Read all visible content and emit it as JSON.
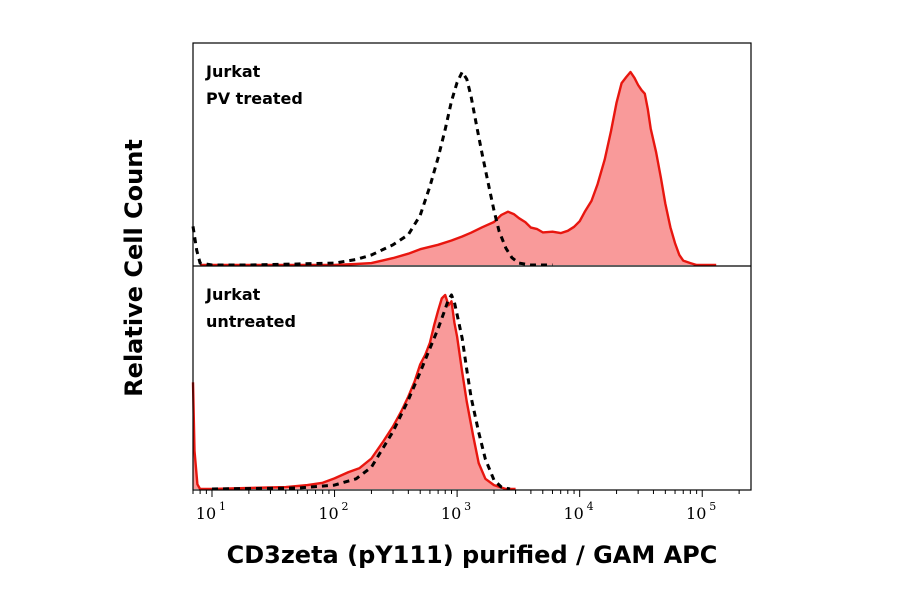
{
  "chart_data": {
    "type": "area",
    "xlabel": "CD3zeta (pY111) purified / GAM APC",
    "ylabel": "Relative Cell Count",
    "xscale": "log",
    "xlim": [
      7,
      250000
    ],
    "xticks": [
      {
        "value": 10,
        "base": "10",
        "exp": "1"
      },
      {
        "value": 100,
        "base": "10",
        "exp": "2"
      },
      {
        "value": 1000,
        "base": "10",
        "exp": "3"
      },
      {
        "value": 10000,
        "base": "10",
        "exp": "4"
      },
      {
        "value": 100000,
        "base": "10",
        "exp": "5"
      }
    ],
    "grid": false,
    "legend": "none",
    "colors": {
      "sample": "#e8160f",
      "sample_fill": "#f99a9a",
      "control": "#000000"
    },
    "panels": [
      {
        "id": "pv-treated",
        "label_lines": [
          "Jurkat",
          "PV treated"
        ],
        "series": [
          {
            "role": "sample",
            "style": "filled-red",
            "x": [
              8,
              30,
              60,
              100,
              150,
              200,
              300,
              400,
              500,
              700,
              900,
              1100,
              1300,
              1600,
              2000,
              2300,
              2600,
              2900,
              3200,
              3600,
              4000,
              4500,
              5000,
              6000,
              7000,
              8000,
              9000,
              10000,
              11000,
              12500,
              14000,
              16000,
              18000,
              20000,
              22000,
              24000,
              26000,
              28000,
              30000,
              32000,
              34000,
              36000,
              38000,
              42000,
              46000,
              50000,
              55000,
              60000,
              65000,
              70000,
              80000,
              90000,
              100000,
              130000
            ],
            "y": [
              0,
              0,
              0,
              0,
              0.005,
              0.01,
              0.04,
              0.06,
              0.08,
              0.1,
              0.12,
              0.14,
              0.16,
              0.19,
              0.22,
              0.26,
              0.28,
              0.27,
              0.25,
              0.23,
              0.2,
              0.19,
              0.17,
              0.17,
              0.16,
              0.17,
              0.19,
              0.22,
              0.27,
              0.33,
              0.42,
              0.55,
              0.7,
              0.85,
              0.95,
              0.98,
              1.0,
              0.97,
              0.93,
              0.9,
              0.88,
              0.8,
              0.7,
              0.58,
              0.45,
              0.32,
              0.2,
              0.12,
              0.06,
              0.03,
              0.01,
              0,
              0,
              0
            ]
          },
          {
            "role": "control",
            "style": "dashed-black",
            "x": [
              7,
              7.5,
              8,
              10,
              20,
              50,
              100,
              150,
              200,
              300,
              400,
              500,
              600,
              700,
              800,
              900,
              1000,
              1100,
              1200,
              1300,
              1450,
              1600,
              1800,
              2000,
              2200,
              2500,
              2800,
              3200,
              4000,
              6000
            ],
            "y": [
              0.2,
              0.08,
              0.01,
              0,
              0,
              0.005,
              0.01,
              0.03,
              0.05,
              0.1,
              0.15,
              0.25,
              0.4,
              0.55,
              0.7,
              0.85,
              0.95,
              1.0,
              0.97,
              0.88,
              0.72,
              0.58,
              0.42,
              0.28,
              0.17,
              0.08,
              0.03,
              0.01,
              0,
              0
            ]
          }
        ]
      },
      {
        "id": "untreated",
        "label_lines": [
          "Jurkat",
          "untreated"
        ],
        "series": [
          {
            "role": "sample",
            "style": "filled-red",
            "x": [
              7,
              7.2,
              7.6,
              8,
              10,
              20,
              40,
              60,
              80,
              100,
              130,
              160,
              200,
              250,
              300,
              350,
              400,
              450,
              500,
              550,
              600,
              650,
              700,
              750,
              800,
              850,
              900,
              950,
              1000,
              1100,
              1200,
              1350,
              1500,
              1700,
              2000,
              2500,
              3000
            ],
            "y": [
              0.55,
              0.2,
              0.03,
              0,
              0,
              0.005,
              0.01,
              0.02,
              0.03,
              0.05,
              0.08,
              0.1,
              0.15,
              0.24,
              0.32,
              0.4,
              0.48,
              0.56,
              0.65,
              0.7,
              0.76,
              0.85,
              0.92,
              0.98,
              1.0,
              0.94,
              0.96,
              0.85,
              0.78,
              0.6,
              0.45,
              0.28,
              0.14,
              0.06,
              0.02,
              0,
              0
            ]
          },
          {
            "role": "control",
            "style": "dashed-black",
            "x": [
              10,
              50,
              100,
              150,
              200,
              250,
              300,
              400,
              500,
              600,
              700,
              800,
              850,
              900,
              950,
              1000,
              1100,
              1200,
              1300,
              1500,
              1700,
              2000,
              2300,
              2700
            ],
            "y": [
              0,
              0.005,
              0.02,
              0.06,
              0.12,
              0.22,
              0.3,
              0.46,
              0.6,
              0.72,
              0.82,
              0.92,
              0.97,
              1.0,
              0.96,
              0.9,
              0.78,
              0.62,
              0.48,
              0.3,
              0.16,
              0.05,
              0.01,
              0
            ]
          }
        ]
      }
    ]
  }
}
